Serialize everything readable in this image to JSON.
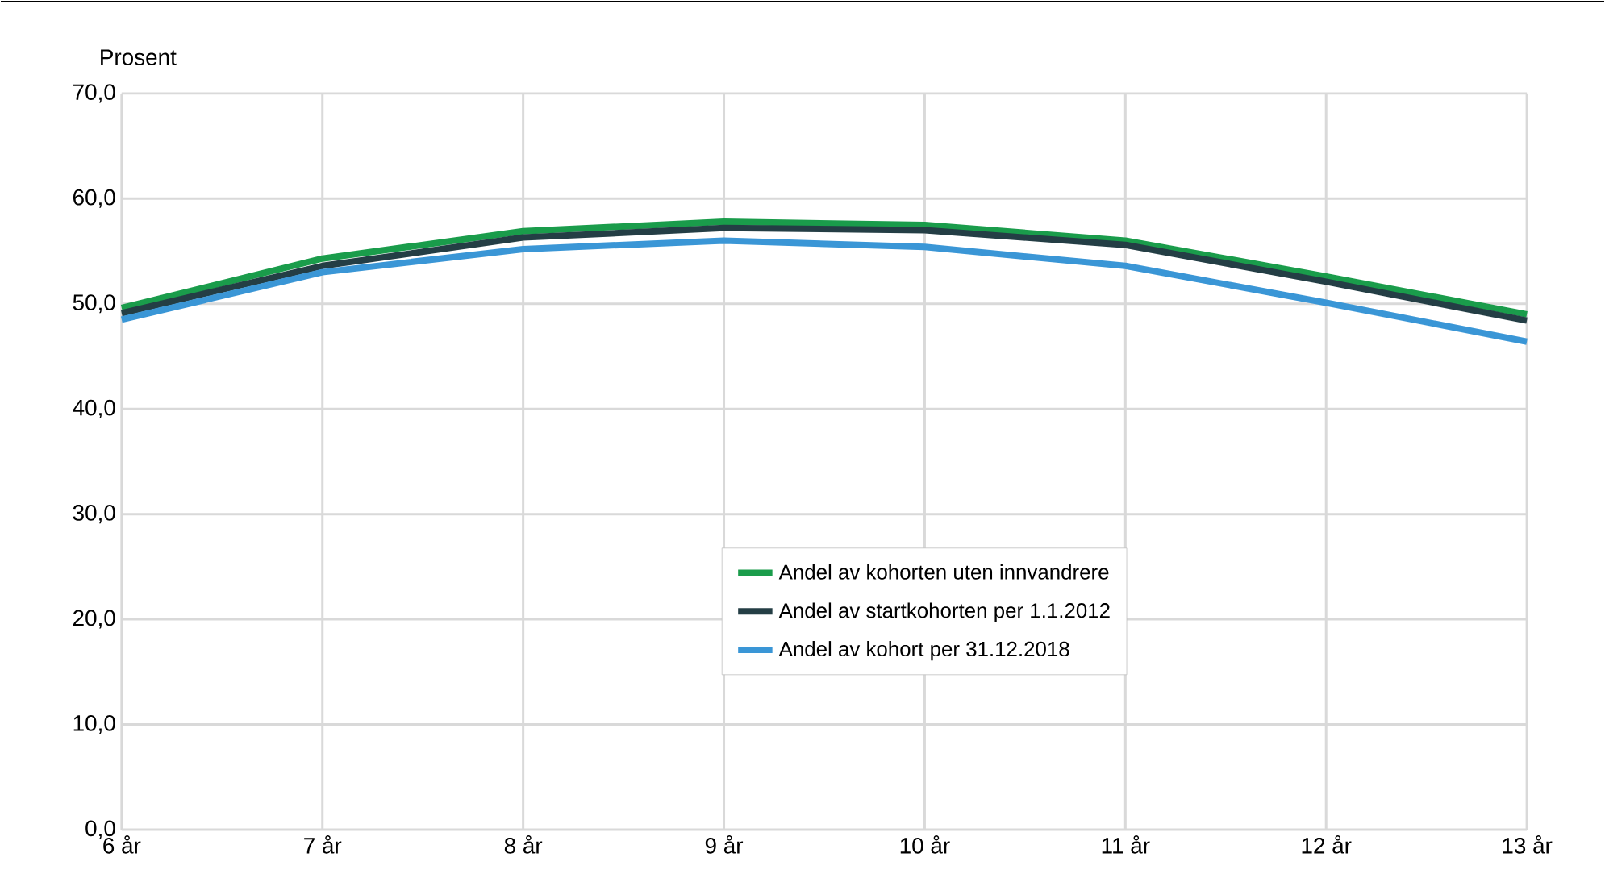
{
  "chart_data": {
    "type": "line",
    "ylabel": "Prosent",
    "categories": [
      "6 år",
      "7 år",
      "8 år",
      "9 år",
      "10 år",
      "11 år",
      "12 år",
      "13 år"
    ],
    "series": [
      {
        "name": "Andel av kohorten uten innvandrere",
        "color": "#1a9c4b",
        "values": [
          49.6,
          54.3,
          56.9,
          57.8,
          57.5,
          56.0,
          52.6,
          49.0
        ]
      },
      {
        "name": "Andel av startkohorten per 1.1.2012",
        "color": "#243e45",
        "values": [
          49.1,
          53.6,
          56.3,
          57.2,
          57.0,
          55.6,
          52.1,
          48.4
        ]
      },
      {
        "name": "Andel av kohort per 31.12.2018",
        "color": "#3a96d6",
        "values": [
          48.5,
          53.0,
          55.2,
          56.0,
          55.4,
          53.6,
          50.1,
          46.4
        ]
      }
    ],
    "ylim": [
      0,
      70
    ],
    "yticks": [
      {
        "value": 0,
        "label": "0,0"
      },
      {
        "value": 10,
        "label": "10,0"
      },
      {
        "value": 20,
        "label": "20,0"
      },
      {
        "value": 30,
        "label": "30,0"
      },
      {
        "value": 40,
        "label": "40,0"
      },
      {
        "value": 50,
        "label": "50,0"
      },
      {
        "value": 60,
        "label": "60,0"
      },
      {
        "value": 70,
        "label": "70,0"
      }
    ],
    "grid": true,
    "legend": "bottom right",
    "marker": "none",
    "line_style": "solid"
  }
}
